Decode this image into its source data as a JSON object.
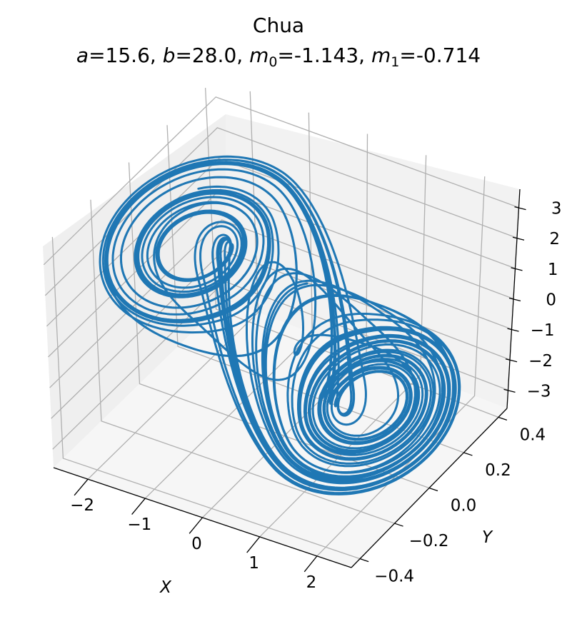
{
  "chart_data": {
    "type": "line",
    "projection": "3d",
    "title": "Chua",
    "subtitle_parts": {
      "a_label": "a",
      "a_value": "=15.6, ",
      "b_label": "b",
      "b_value": "=28.0, ",
      "m0_label": "m",
      "m0_sub": "0",
      "m0_value": "=-1.143, ",
      "m1_label": "m",
      "m1_sub": "1",
      "m1_value": "=-0.714"
    },
    "xlabel": "X",
    "ylabel": "Y",
    "zlabel": "",
    "xlim": [
      -2.6,
      2.6
    ],
    "ylim": [
      -0.45,
      0.45
    ],
    "zlim": [
      -3.6,
      3.6
    ],
    "x_ticks": [
      "−2",
      "−1",
      "0",
      "1",
      "2"
    ],
    "y_ticks": [
      "−0.4",
      "−0.2",
      "0.0",
      "0.2",
      "0.4"
    ],
    "z_ticks": [
      "−3",
      "−2",
      "−1",
      "0",
      "1",
      "2",
      "3"
    ],
    "grid": true,
    "series": [
      {
        "color": "#1f77b4",
        "system": "chua",
        "parameters": {
          "a": 15.6,
          "b": 28.0,
          "m0": -1.143,
          "m1": -0.714
        }
      }
    ]
  }
}
